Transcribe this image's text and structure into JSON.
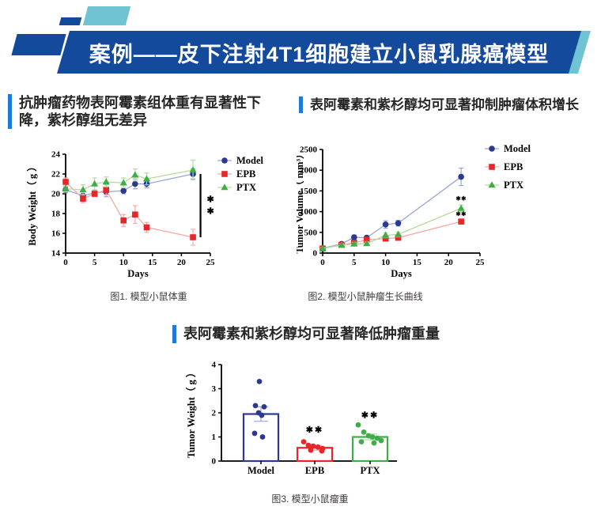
{
  "header": {
    "title": "案例——皮下注射4T1细胞建立小鼠乳腺癌模型"
  },
  "section_titles": {
    "left": "抗肿瘤药物表阿霉素组体重有显著性下降，紫杉醇组无差异",
    "right": "表阿霉素和紫杉醇均可显著抑制肿瘤体积增长",
    "bottom": "表阿霉素和紫杉醇均可显著降低肿瘤重量"
  },
  "captions": {
    "fig1": "图1. 模型小鼠体重",
    "fig2": "图2. 模型小鼠肿瘤生长曲线",
    "fig3": "图3. 模型小鼠瘤重"
  },
  "colors": {
    "banner_blue": "#134a9c",
    "teal": "#6fc3d3",
    "accent_blue": "#1d7bdb",
    "model": "#2b3990",
    "model_line": "#97a6d8",
    "epb": "#e8262a",
    "epb_line": "#f5a9a5",
    "ptx": "#3fae49",
    "ptx_line": "#b7d99e"
  },
  "chart_data": [
    {
      "id": "chart1",
      "type": "line",
      "title": "",
      "xlabel": "Days",
      "ylabel": "Body Weight（ g ）",
      "x": [
        0,
        3,
        5,
        7,
        10,
        12,
        14,
        22
      ],
      "xlim": [
        0,
        25
      ],
      "xticks": [
        0,
        5,
        10,
        15,
        20,
        25
      ],
      "ylim": [
        14,
        24
      ],
      "yticks": [
        14,
        16,
        18,
        20,
        22,
        24
      ],
      "legend_position": "top-right-outside",
      "grid": false,
      "series": [
        {
          "name": "Model",
          "marker": "circle",
          "values": [
            20.4,
            19.8,
            20.1,
            20.2,
            20.3,
            21.0,
            21.0,
            22.0
          ],
          "err": [
            0.3,
            0.4,
            0.3,
            0.5,
            0.3,
            0.5,
            0.4,
            0.5
          ]
        },
        {
          "name": "EPB",
          "marker": "square",
          "values": [
            21.2,
            19.5,
            20.0,
            20.4,
            17.3,
            17.9,
            16.6,
            15.6
          ],
          "err": [
            0.4,
            0.4,
            0.3,
            0.5,
            0.6,
            0.9,
            0.5,
            0.8
          ]
        },
        {
          "name": "PTX",
          "marker": "triangle",
          "values": [
            20.5,
            20.4,
            21.0,
            21.2,
            21.1,
            21.9,
            21.5,
            22.4
          ],
          "err": [
            0.3,
            0.5,
            0.6,
            0.5,
            0.5,
            0.6,
            0.6,
            1.0
          ]
        }
      ],
      "sig_bracket": {
        "x_day": 23.3,
        "y_top": 22.0,
        "y_bottom": 15.6,
        "stars": [
          "✱",
          "✱"
        ],
        "stars_y": [
          19.5,
          18.3
        ]
      }
    },
    {
      "id": "chart2",
      "type": "line",
      "title": "",
      "xlabel": "Days",
      "ylabel": "Tumor Volume（ mm³）",
      "x": [
        0,
        3,
        5,
        7,
        10,
        12,
        22
      ],
      "xlim": [
        0,
        25
      ],
      "xticks": [
        0,
        5,
        10,
        15,
        20,
        25
      ],
      "ylim": [
        0,
        2500
      ],
      "yticks": [
        0,
        500,
        1000,
        1500,
        2000,
        2500
      ],
      "legend_position": "top-right-outside",
      "grid": false,
      "series": [
        {
          "name": "Model",
          "marker": "circle",
          "values": [
            120,
            220,
            380,
            370,
            690,
            720,
            1840
          ],
          "err": [
            30,
            40,
            55,
            50,
            90,
            70,
            210
          ]
        },
        {
          "name": "EPB",
          "marker": "square",
          "values": [
            110,
            200,
            250,
            320,
            350,
            370,
            760
          ],
          "err": [
            25,
            35,
            40,
            45,
            50,
            50,
            60
          ]
        },
        {
          "name": "PTX",
          "marker": "triangle",
          "values": [
            110,
            190,
            220,
            230,
            430,
            450,
            1080
          ],
          "err": [
            25,
            35,
            40,
            40,
            60,
            60,
            80
          ]
        }
      ],
      "annotations": [
        {
          "x": 22,
          "y": 1270,
          "text": "✱✱"
        },
        {
          "x": 22,
          "y": 900,
          "text": "✱✱"
        }
      ]
    },
    {
      "id": "chart3",
      "type": "bar",
      "title": "",
      "xlabel": "",
      "ylabel": "Tumor Weight（ g ）",
      "categories": [
        "Model",
        "EPB",
        "PTX"
      ],
      "bar_values": [
        1.95,
        0.55,
        1.0
      ],
      "bar_err": [
        0.3,
        0.1,
        0.12
      ],
      "ylim": [
        0,
        4
      ],
      "yticks": [
        0,
        1,
        2,
        3,
        4
      ],
      "grid": false,
      "points": [
        [
          3.3,
          2.3,
          2.25,
          2.0,
          1.9,
          1.15,
          1.0
        ],
        [
          0.8,
          0.65,
          0.62,
          0.58,
          0.52,
          0.45,
          0.42
        ],
        [
          1.5,
          1.2,
          1.05,
          1.0,
          0.95,
          0.85,
          0.8,
          0.75
        ]
      ],
      "sig": [
        "",
        "✱✱",
        "✱✱"
      ],
      "sig_y": [
        0,
        1.18,
        1.78
      ]
    }
  ]
}
